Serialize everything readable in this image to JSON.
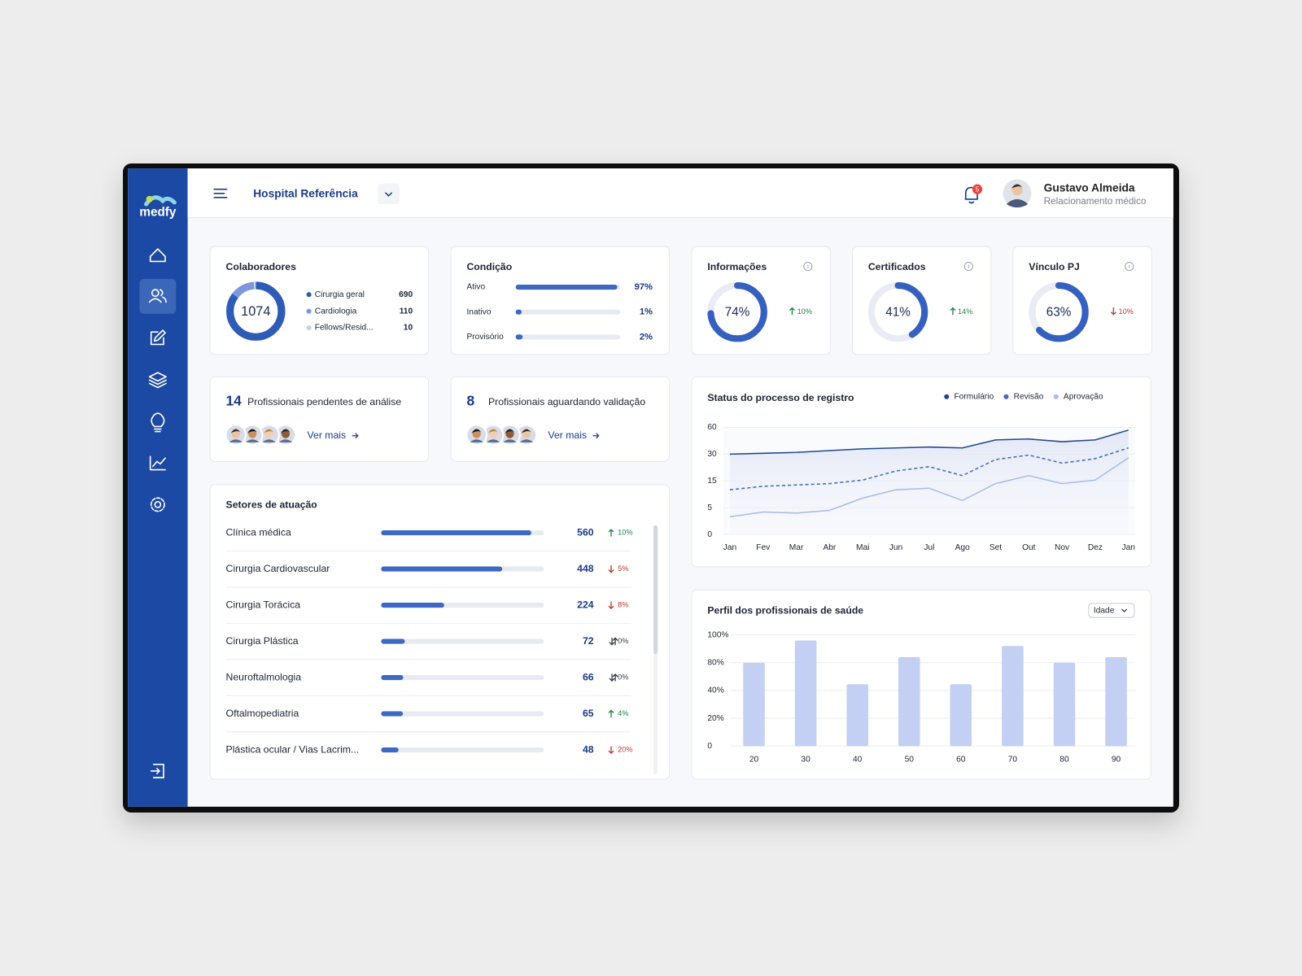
{
  "brand": "medfy",
  "header": {
    "hospital": "Hospital Referência",
    "notifications": 5,
    "user_name": "Gustavo Almeida",
    "user_role": "Relacionamento médico"
  },
  "colaboradores": {
    "title": "Colaboradores",
    "total": 1074,
    "items": [
      {
        "name": "Cirurgia geral",
        "value": 690,
        "color": "#2d5bb5"
      },
      {
        "name": "Cardiologia",
        "value": 110,
        "color": "#7b98dd"
      },
      {
        "name": "Fellows/Resid...",
        "value": 10,
        "color": "#c5d1f1"
      }
    ]
  },
  "condicao": {
    "title": "Condição",
    "items": [
      {
        "name": "Ativo",
        "value": 97,
        "value_label": "97%"
      },
      {
        "name": "Inativo",
        "value": 1,
        "value_label": "1%"
      },
      {
        "name": "Provisório",
        "value": 2,
        "value_label": "2%"
      }
    ]
  },
  "kpis": [
    {
      "title": "Informações",
      "value": 74,
      "value_label": "74%",
      "change": 10,
      "change_label": "10%",
      "direction": "up"
    },
    {
      "title": "Certificados",
      "value": 41,
      "value_label": "41%",
      "change": 14,
      "change_label": "14%",
      "direction": "up"
    },
    {
      "title": "Vínculo PJ",
      "value": 63,
      "value_label": "63%",
      "change": 10,
      "change_label": "10%",
      "direction": "down"
    }
  ],
  "pending": [
    {
      "count": 14,
      "text": "Profissionais pendentes de análise",
      "link": "Ver mais"
    },
    {
      "count": 8,
      "text": "Profissionais aguardando validação",
      "link": "Ver mais"
    }
  ],
  "setores": {
    "title": "Setores de atuação",
    "rows": [
      {
        "name": "Clínica médica",
        "value": 560,
        "change": 10,
        "change_label": "10%",
        "direction": "up"
      },
      {
        "name": "Cirurgia Cardiovascular",
        "value": 448,
        "change": 5,
        "change_label": "5%",
        "direction": "down"
      },
      {
        "name": "Cirurgia Torácica",
        "value": 224,
        "change": 8,
        "change_label": "8%",
        "direction": "down"
      },
      {
        "name": "Cirurgia Plástica",
        "value": 72,
        "change": 0,
        "change_label": "0%",
        "direction": "flat"
      },
      {
        "name": "Neuroftalmologia",
        "value": 66,
        "change": 0,
        "change_label": "0%",
        "direction": "flat"
      },
      {
        "name": "Oftalmopediatria",
        "value": 65,
        "change": 4,
        "change_label": "4%",
        "direction": "up"
      },
      {
        "name": "Plástica ocular / Vias Lacrim...",
        "value": 48,
        "change": 20,
        "change_label": "20%",
        "direction": "down"
      }
    ]
  },
  "chart_data": [
    {
      "type": "line",
      "title": "Status do processo de registro",
      "categories": [
        "Jan",
        "Fev",
        "Mar",
        "Abr",
        "Mai",
        "Jun",
        "Jul",
        "Ago",
        "Set",
        "Out",
        "Nov",
        "Dez",
        "Jan"
      ],
      "series": [
        {
          "name": "Formulário",
          "color": "#1f4597",
          "style": "solid",
          "area": true,
          "values": [
            30,
            31,
            32,
            34,
            36,
            37,
            38,
            37,
            46,
            47,
            44,
            46,
            57
          ]
        },
        {
          "name": "Revisão",
          "color": "#4368bb",
          "style": "dashed",
          "values": [
            11.7,
            13,
            13.5,
            14,
            15.5,
            20.6,
            23,
            18,
            27,
            29.5,
            25,
            27.5,
            37
          ]
        },
        {
          "name": "Aprovação",
          "color": "#a9bbe9",
          "style": "solid",
          "values": [
            3.3,
            4.2,
            4,
            4.5,
            8.6,
            11.7,
            12.3,
            7.7,
            14,
            18,
            14,
            15.5,
            28
          ]
        }
      ],
      "ylim": [
        0,
        60
      ],
      "yticks": [
        0,
        5,
        15,
        30,
        60
      ],
      "grid": true,
      "legend": "top-right"
    },
    {
      "type": "bar",
      "title": "Perfil dos profissionais de saúde",
      "filter": "Idade",
      "categories": [
        "20",
        "30",
        "40",
        "50",
        "60",
        "70",
        "80",
        "90"
      ],
      "values": [
        80,
        96,
        49,
        84,
        49,
        92,
        80,
        84
      ],
      "color": "#c3cff3",
      "ylim": [
        0,
        100
      ],
      "yticks": [
        0,
        {
          "value": 20,
          "label": "20%"
        },
        {
          "value": 40,
          "label": "40%"
        },
        {
          "value": 80,
          "label": "80%"
        },
        {
          "value": 100,
          "label": "100%"
        }
      ],
      "grid": true
    }
  ]
}
